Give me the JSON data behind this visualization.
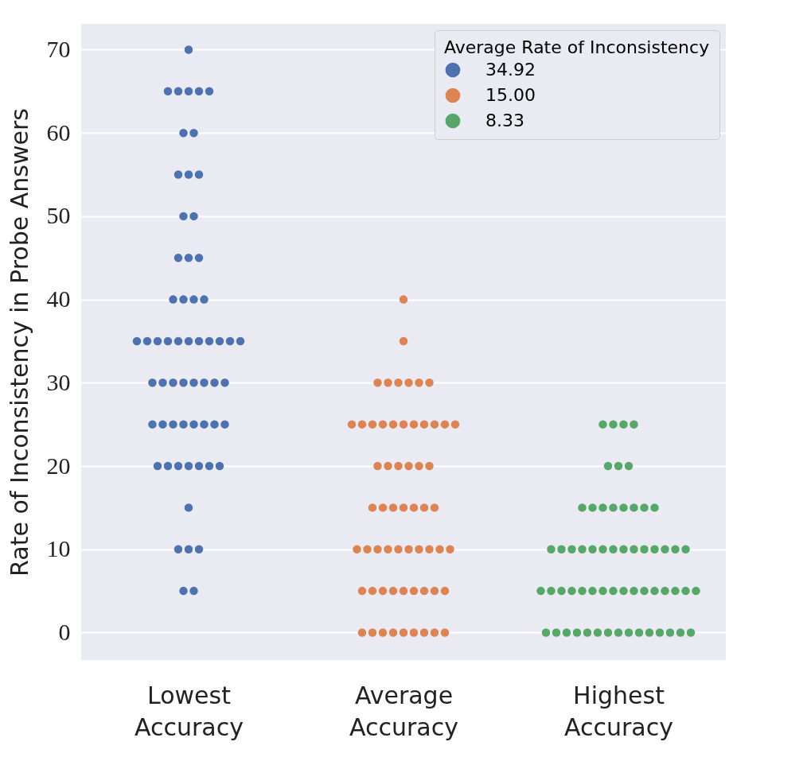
{
  "chart_data": {
    "type": "scatter",
    "ylabel": "Rate of Inconsistency in Probe Answers",
    "legend_title": "Average Rate of Inconsistency",
    "categories": [
      "Lowest Accuracy",
      "Average Accuracy",
      "Highest Accuracy"
    ],
    "ylim": [
      -3.3,
      73.1
    ],
    "yticks": [
      0,
      10,
      20,
      30,
      40,
      50,
      60,
      70
    ],
    "grid": "y",
    "legend": "top right",
    "marker": "circle",
    "series": [
      {
        "name": "34.92",
        "color": "#4c72b0",
        "x": [
          "Lowest Accuracy",
          "Lowest Accuracy",
          "Lowest Accuracy",
          "Lowest Accuracy",
          "Lowest Accuracy",
          "Lowest Accuracy",
          "Lowest Accuracy",
          "Lowest Accuracy",
          "Lowest Accuracy",
          "Lowest Accuracy",
          "Lowest Accuracy",
          "Lowest Accuracy",
          "Lowest Accuracy",
          "Lowest Accuracy",
          "Lowest Accuracy",
          "Lowest Accuracy",
          "Lowest Accuracy",
          "Lowest Accuracy",
          "Lowest Accuracy",
          "Lowest Accuracy",
          "Lowest Accuracy",
          "Lowest Accuracy",
          "Lowest Accuracy",
          "Lowest Accuracy",
          "Lowest Accuracy",
          "Lowest Accuracy",
          "Lowest Accuracy",
          "Lowest Accuracy",
          "Lowest Accuracy",
          "Lowest Accuracy",
          "Lowest Accuracy",
          "Lowest Accuracy",
          "Lowest Accuracy",
          "Lowest Accuracy",
          "Lowest Accuracy",
          "Lowest Accuracy",
          "Lowest Accuracy",
          "Lowest Accuracy",
          "Lowest Accuracy",
          "Lowest Accuracy",
          "Lowest Accuracy",
          "Lowest Accuracy",
          "Lowest Accuracy",
          "Lowest Accuracy",
          "Lowest Accuracy",
          "Lowest Accuracy",
          "Lowest Accuracy",
          "Lowest Accuracy",
          "Lowest Accuracy",
          "Lowest Accuracy",
          "Lowest Accuracy",
          "Lowest Accuracy",
          "Lowest Accuracy",
          "Lowest Accuracy",
          "Lowest Accuracy",
          "Lowest Accuracy",
          "Lowest Accuracy",
          "Lowest Accuracy",
          "Lowest Accuracy",
          "Lowest Accuracy"
        ],
        "values": [
          70,
          65,
          65,
          65,
          65,
          65,
          60,
          60,
          55,
          55,
          55,
          50,
          50,
          45,
          45,
          45,
          40,
          40,
          40,
          40,
          35,
          35,
          35,
          35,
          35,
          35,
          35,
          35,
          35,
          35,
          35,
          30,
          30,
          30,
          30,
          30,
          30,
          30,
          30,
          25,
          25,
          25,
          25,
          25,
          25,
          25,
          25,
          20,
          20,
          20,
          20,
          20,
          20,
          20,
          15,
          10,
          10,
          10,
          5,
          5
        ]
      },
      {
        "name": "15.00",
        "color": "#dd8452",
        "x": [
          "Average Accuracy",
          "Average Accuracy",
          "Average Accuracy",
          "Average Accuracy",
          "Average Accuracy",
          "Average Accuracy",
          "Average Accuracy",
          "Average Accuracy",
          "Average Accuracy",
          "Average Accuracy",
          "Average Accuracy",
          "Average Accuracy",
          "Average Accuracy",
          "Average Accuracy",
          "Average Accuracy",
          "Average Accuracy",
          "Average Accuracy",
          "Average Accuracy",
          "Average Accuracy",
          "Average Accuracy",
          "Average Accuracy",
          "Average Accuracy",
          "Average Accuracy",
          "Average Accuracy",
          "Average Accuracy",
          "Average Accuracy",
          "Average Accuracy",
          "Average Accuracy",
          "Average Accuracy",
          "Average Accuracy",
          "Average Accuracy",
          "Average Accuracy",
          "Average Accuracy",
          "Average Accuracy",
          "Average Accuracy",
          "Average Accuracy",
          "Average Accuracy",
          "Average Accuracy",
          "Average Accuracy",
          "Average Accuracy",
          "Average Accuracy",
          "Average Accuracy",
          "Average Accuracy",
          "Average Accuracy",
          "Average Accuracy",
          "Average Accuracy",
          "Average Accuracy",
          "Average Accuracy",
          "Average Accuracy",
          "Average Accuracy",
          "Average Accuracy",
          "Average Accuracy",
          "Average Accuracy",
          "Average Accuracy",
          "Average Accuracy",
          "Average Accuracy",
          "Average Accuracy",
          "Average Accuracy",
          "Average Accuracy",
          "Average Accuracy"
        ],
        "values": [
          40,
          35,
          30,
          30,
          30,
          30,
          30,
          30,
          25,
          25,
          25,
          25,
          25,
          25,
          25,
          25,
          25,
          25,
          25,
          20,
          20,
          20,
          20,
          20,
          20,
          15,
          15,
          15,
          15,
          15,
          15,
          15,
          10,
          10,
          10,
          10,
          10,
          10,
          10,
          10,
          10,
          10,
          5,
          5,
          5,
          5,
          5,
          5,
          5,
          5,
          5,
          0,
          0,
          0,
          0,
          0,
          0,
          0,
          0,
          0
        ]
      },
      {
        "name": "8.33",
        "color": "#55a868",
        "x": [
          "Highest Accuracy",
          "Highest Accuracy",
          "Highest Accuracy",
          "Highest Accuracy",
          "Highest Accuracy",
          "Highest Accuracy",
          "Highest Accuracy",
          "Highest Accuracy",
          "Highest Accuracy",
          "Highest Accuracy",
          "Highest Accuracy",
          "Highest Accuracy",
          "Highest Accuracy",
          "Highest Accuracy",
          "Highest Accuracy",
          "Highest Accuracy",
          "Highest Accuracy",
          "Highest Accuracy",
          "Highest Accuracy",
          "Highest Accuracy",
          "Highest Accuracy",
          "Highest Accuracy",
          "Highest Accuracy",
          "Highest Accuracy",
          "Highest Accuracy",
          "Highest Accuracy",
          "Highest Accuracy",
          "Highest Accuracy",
          "Highest Accuracy",
          "Highest Accuracy",
          "Highest Accuracy",
          "Highest Accuracy",
          "Highest Accuracy",
          "Highest Accuracy",
          "Highest Accuracy",
          "Highest Accuracy",
          "Highest Accuracy",
          "Highest Accuracy",
          "Highest Accuracy",
          "Highest Accuracy",
          "Highest Accuracy",
          "Highest Accuracy",
          "Highest Accuracy",
          "Highest Accuracy",
          "Highest Accuracy",
          "Highest Accuracy",
          "Highest Accuracy",
          "Highest Accuracy",
          "Highest Accuracy",
          "Highest Accuracy",
          "Highest Accuracy",
          "Highest Accuracy",
          "Highest Accuracy",
          "Highest Accuracy",
          "Highest Accuracy",
          "Highest Accuracy",
          "Highest Accuracy",
          "Highest Accuracy",
          "Highest Accuracy",
          "Highest Accuracy"
        ],
        "values": [
          25,
          25,
          25,
          25,
          20,
          20,
          20,
          15,
          15,
          15,
          15,
          15,
          15,
          15,
          15,
          10,
          10,
          10,
          10,
          10,
          10,
          10,
          10,
          10,
          10,
          10,
          10,
          10,
          10,
          5,
          5,
          5,
          5,
          5,
          5,
          5,
          5,
          5,
          5,
          5,
          5,
          5,
          5,
          5,
          5,
          0,
          0,
          0,
          0,
          0,
          0,
          0,
          0,
          0,
          0,
          0,
          0,
          0,
          0,
          0
        ]
      }
    ]
  }
}
